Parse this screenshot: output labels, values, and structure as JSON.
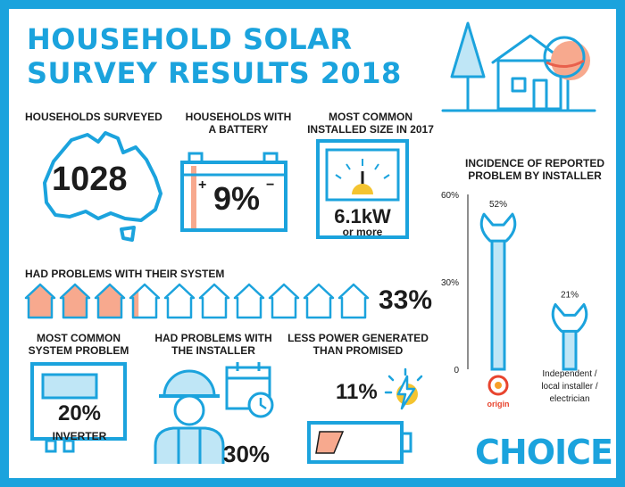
{
  "title": {
    "line1": "HOUSEHOLD SOLAR",
    "line2": "SURVEY RESULTS 2018"
  },
  "colors": {
    "accent": "#1ba3dd",
    "highlight": "#f7a98e",
    "dark": "#1c1c1c",
    "sun": "#f4c430"
  },
  "stats": {
    "surveyed": {
      "label": "HOUSEHOLDS SURVEYED",
      "value": "1028"
    },
    "battery": {
      "label_line1": "HOUSEHOLDS WITH",
      "label_line2": "A BATTERY",
      "value": "9%"
    },
    "size": {
      "label_line1": "MOST COMMON",
      "label_line2": "INSTALLED SIZE IN 2017",
      "value": "6.1kW",
      "sub": "or more"
    },
    "problems": {
      "label": "HAD PROBLEMS WITH THEIR SYSTEM",
      "value": "33%",
      "fraction": 0.33,
      "houses": 10
    },
    "common_problem": {
      "label_line1": "MOST COMMON",
      "label_line2": "SYSTEM PROBLEM",
      "value": "20%",
      "item": "INVERTER"
    },
    "installer": {
      "label_line1": "HAD PROBLEMS WITH",
      "label_line2": "THE INSTALLER",
      "value": "30%"
    },
    "less_power": {
      "label_line1": "LESS POWER GENERATED",
      "label_line2": "THAN PROMISED",
      "value": "11%"
    }
  },
  "chart_data": {
    "type": "bar",
    "title": "INCIDENCE OF REPORTED PROBLEM BY INSTALLER",
    "categories": [
      "origin",
      "Independent / local installer / electrician"
    ],
    "values": [
      52,
      21
    ],
    "value_labels": [
      "52%",
      "21%"
    ],
    "yticks": [
      "60%",
      "30%",
      "0"
    ],
    "ylim": [
      0,
      60
    ]
  },
  "brand": "CHOICE"
}
